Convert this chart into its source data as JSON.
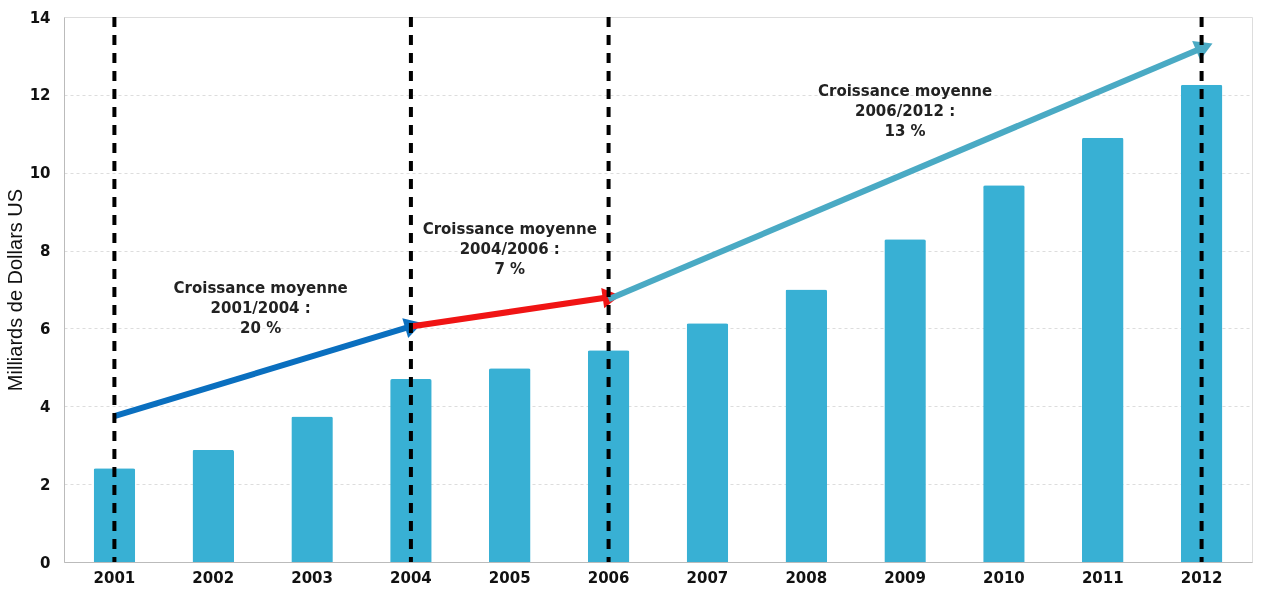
{
  "chart_data": {
    "type": "bar",
    "ylabel": "Milliards de Dollars US",
    "categories": [
      "2001",
      "2002",
      "2003",
      "2004",
      "2005",
      "2006",
      "2007",
      "2008",
      "2009",
      "2010",
      "2011",
      "2012"
    ],
    "series": [
      {
        "color": "#38b0d4",
        "values": [
          2.41,
          2.88,
          3.74,
          4.7,
          4.98,
          5.44,
          6.13,
          7.0,
          8.29,
          9.68,
          10.9,
          12.26
        ]
      },
      {
        "type": "line",
        "color": "#0a6fbf",
        "values": [
          3.75,
          null,
          null,
          6.05,
          null,
          null,
          null,
          null,
          null,
          null,
          null,
          null
        ]
      },
      {
        "type": "line",
        "color": "#f01414",
        "values": [
          null,
          null,
          null,
          6.05,
          null,
          6.8,
          null,
          null,
          null,
          null,
          null,
          null
        ]
      },
      {
        "type": "line",
        "color": "#4aaac4",
        "values": [
          null,
          null,
          null,
          null,
          null,
          6.75,
          null,
          null,
          null,
          null,
          null,
          13.2
        ]
      }
    ],
    "ylim": [
      0,
      14
    ],
    "yticks": [
      0,
      2,
      4,
      6,
      8,
      10,
      12,
      14
    ],
    "grid": "y",
    "ref_lines": [
      {
        "axis": "x",
        "value": "2001",
        "color": "#000000",
        "line_style": "dashed"
      },
      {
        "axis": "x",
        "value": "2004",
        "color": "#000000",
        "line_style": "dashed"
      },
      {
        "axis": "x",
        "value": "2006",
        "color": "#000000",
        "line_style": "dashed"
      },
      {
        "axis": "x",
        "value": "2012",
        "color": "#000000",
        "line_style": "dashed"
      }
    ],
    "annotations": [
      "Croissance moyenne\n2001/2004 :\n20 %",
      "Croissance moyenne\n2004/2006 :\n7 %",
      "Croissance moyenne\n2006/2012 :\n13 %"
    ]
  }
}
